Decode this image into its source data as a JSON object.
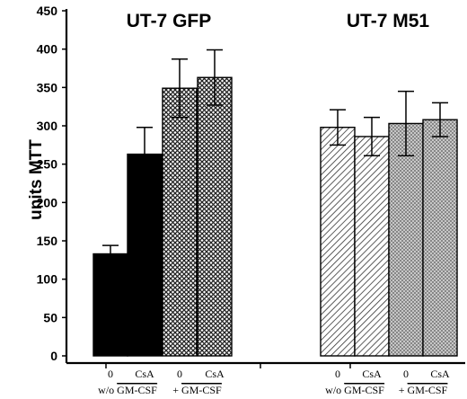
{
  "chart_data": {
    "type": "bar",
    "title": "",
    "xlabel": "",
    "ylabel": "units MTT",
    "ylim": [
      0,
      450
    ],
    "yticks": [
      0,
      50,
      100,
      150,
      200,
      250,
      300,
      350,
      400,
      450
    ],
    "grid": false,
    "error_bars": true,
    "panels": [
      {
        "name": "UT-7 GFP",
        "categories": [
          "0",
          "CsA",
          "0",
          "CsA"
        ],
        "groups": [
          {
            "label_prefix": "w/o",
            "label": "GM-CSF"
          },
          {
            "label_prefix": "+",
            "label": "GM-CSF"
          }
        ],
        "values": [
          133,
          263,
          349,
          363
        ],
        "errors": [
          11,
          35,
          38,
          36
        ],
        "fill": [
          "solid-black",
          "solid-black",
          "crosshatch-dark",
          "crosshatch-dark"
        ]
      },
      {
        "name": "UT-7 M51",
        "categories": [
          "0",
          "CsA",
          "0",
          "CsA"
        ],
        "groups": [
          {
            "label_prefix": "w/o",
            "label": "GM-CSF"
          },
          {
            "label_prefix": "+",
            "label": "GM-CSF"
          }
        ],
        "values": [
          298,
          286,
          303,
          308
        ],
        "errors": [
          23,
          25,
          42,
          22
        ],
        "fill": [
          "diagonal-hatch",
          "diagonal-hatch",
          "crosshatch-light",
          "crosshatch-light"
        ]
      }
    ]
  },
  "colors": {
    "axis": "#000000",
    "solid": "#000000",
    "crosshatch_dark": "#3a3a3a",
    "diagonal": "#555555",
    "crosshatch_light": "#9a9a9a"
  }
}
